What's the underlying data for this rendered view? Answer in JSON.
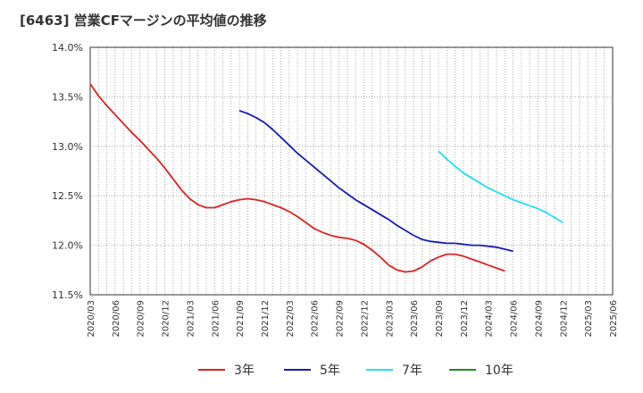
{
  "title": "[6463]  営業CFマージンの平均値の推移",
  "chart_data": {
    "type": "line",
    "title": "[6463]  営業CFマージンの平均値の推移",
    "xlabel": "",
    "ylabel": "",
    "ylim": [
      11.5,
      14.0
    ],
    "y_ticks": [
      "14.0%",
      "13.5%",
      "13.0%",
      "12.5%",
      "12.0%",
      "11.5%"
    ],
    "y_tick_values": [
      14.0,
      13.5,
      13.0,
      12.5,
      12.0,
      11.5
    ],
    "x_ticks": [
      "2020/03",
      "2020/06",
      "2020/09",
      "2020/12",
      "2021/03",
      "2021/06",
      "2021/09",
      "2021/12",
      "2022/03",
      "2022/06",
      "2022/09",
      "2022/12",
      "2023/03",
      "2023/06",
      "2023/09",
      "2023/12",
      "2024/03",
      "2024/06",
      "2024/09",
      "2024/12",
      "2025/03",
      "2025/06"
    ],
    "grid": true,
    "legend_position": "bottom",
    "series": [
      {
        "name": "3年",
        "color": "#dd2222",
        "start_index": 0,
        "values": [
          13.63,
          13.51,
          13.41,
          13.32,
          13.23,
          13.14,
          13.06,
          12.97,
          12.88,
          12.78,
          12.67,
          12.56,
          12.47,
          12.41,
          12.38,
          12.38,
          12.41,
          12.44,
          12.46,
          12.47,
          12.46,
          12.44,
          12.41,
          12.38,
          12.34,
          12.29,
          12.23,
          12.17,
          12.13,
          12.1,
          12.08,
          12.07,
          12.05,
          12.01,
          11.95,
          11.88,
          11.8,
          11.75,
          11.73,
          11.74,
          11.78,
          11.84,
          11.88,
          11.91,
          11.91,
          11.89,
          11.86,
          11.83,
          11.8,
          11.77,
          11.74
        ]
      },
      {
        "name": "5年",
        "color": "#1a1ab5",
        "start_index": 18,
        "values": [
          13.36,
          13.33,
          13.29,
          13.24,
          13.17,
          13.09,
          13.01,
          12.93,
          12.86,
          12.79,
          12.72,
          12.65,
          12.58,
          12.52,
          12.46,
          12.41,
          12.36,
          12.31,
          12.26,
          12.2,
          12.15,
          12.1,
          12.06,
          12.04,
          12.03,
          12.02,
          12.02,
          12.01,
          12.0,
          12.0,
          11.99,
          11.98,
          11.96,
          11.94
        ]
      },
      {
        "name": "7年",
        "color": "#22e0ee",
        "start_index": 42,
        "values": [
          12.95,
          12.87,
          12.8,
          12.73,
          12.68,
          12.63,
          12.58,
          12.54,
          12.5,
          12.46,
          12.43,
          12.4,
          12.37,
          12.33,
          12.28,
          12.23
        ]
      },
      {
        "name": "10年",
        "color": "#228b22",
        "start_index": null,
        "values": []
      }
    ]
  }
}
